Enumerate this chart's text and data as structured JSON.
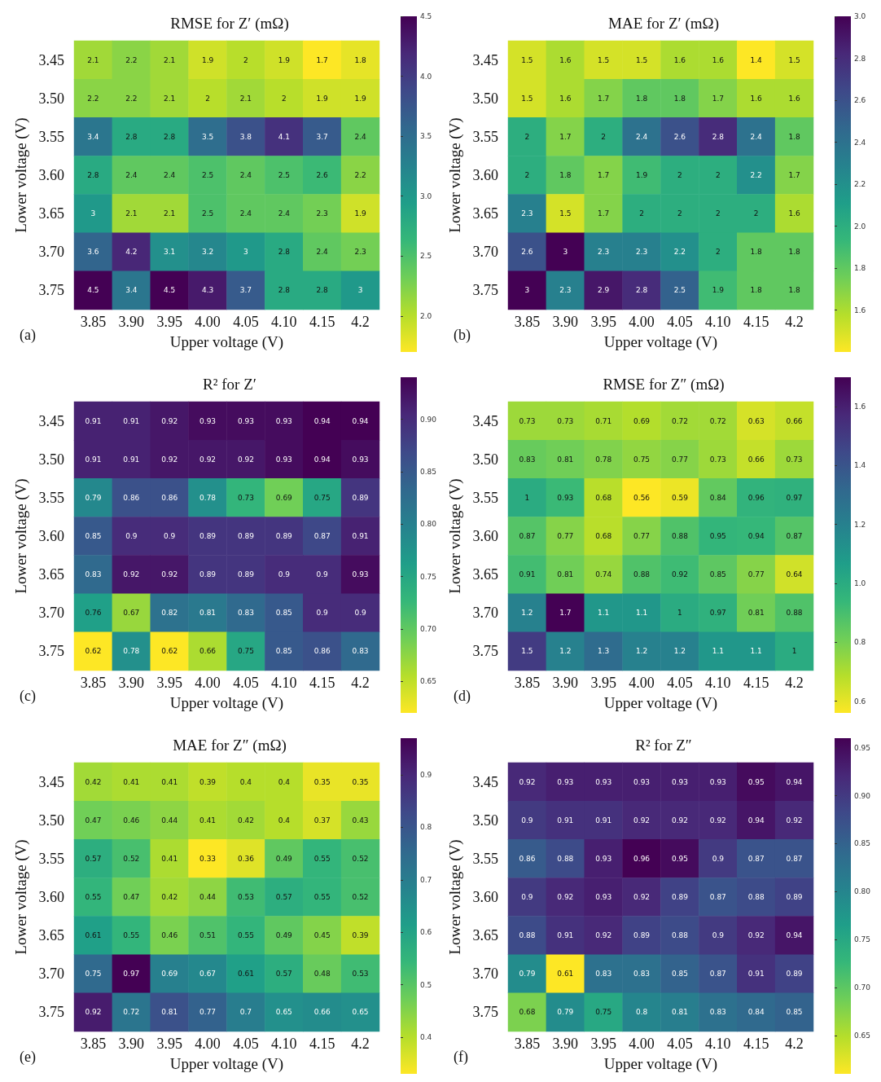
{
  "chart_data": [
    {
      "type": "heatmap",
      "title": "RMSE for Z′ (mΩ)",
      "xlabel": "Upper voltage (V)",
      "ylabel": "Lower voltage (V)",
      "annotations": [
        "(a)"
      ],
      "data_labels": true,
      "categories": [
        "3.85",
        "3.90",
        "3.95",
        "4.00",
        "4.05",
        "4.10",
        "4.15",
        "4.2"
      ],
      "y_categories": [
        "3.45",
        "3.50",
        "3.55",
        "3.60",
        "3.65",
        "3.70",
        "3.75"
      ],
      "cells": [
        [
          2.1,
          2.2,
          2.1,
          1.9,
          2,
          1.9,
          1.7,
          1.8
        ],
        [
          2.2,
          2.2,
          2.1,
          2,
          2.1,
          2,
          1.9,
          1.9
        ],
        [
          3.4,
          2.8,
          2.8,
          3.5,
          3.8,
          4.1,
          3.7,
          2.4
        ],
        [
          2.8,
          2.4,
          2.4,
          2.5,
          2.4,
          2.5,
          2.6,
          2.2
        ],
        [
          3,
          2.1,
          2.1,
          2.5,
          2.4,
          2.4,
          2.3,
          1.9
        ],
        [
          3.6,
          4.2,
          3.1,
          3.2,
          3,
          2.8,
          2.4,
          2.3
        ],
        [
          4.5,
          3.4,
          4.5,
          4.3,
          3.7,
          2.8,
          2.8,
          3
        ]
      ],
      "clim": [
        1.7,
        4.5
      ],
      "cticks": [
        {
          "value": 2,
          "label": "2.0"
        },
        {
          "value": 2.5,
          "label": "2.5"
        },
        {
          "value": 3,
          "label": "3.0"
        },
        {
          "value": 3.5,
          "label": "3.5"
        },
        {
          "value": 4,
          "label": "4.0"
        },
        {
          "value": 4.5,
          "label": "4.5"
        }
      ]
    },
    {
      "type": "heatmap",
      "title": "MAE for Z′ (mΩ)",
      "xlabel": "Upper voltage (V)",
      "ylabel": "Lower voltage (V)",
      "annotations": [
        "(b)"
      ],
      "data_labels": true,
      "categories": [
        "3.85",
        "3.90",
        "3.95",
        "4.00",
        "4.05",
        "4.10",
        "4.15",
        "4.2"
      ],
      "y_categories": [
        "3.45",
        "3.50",
        "3.55",
        "3.60",
        "3.65",
        "3.70",
        "3.75"
      ],
      "cells": [
        [
          1.5,
          1.6,
          1.5,
          1.5,
          1.6,
          1.6,
          1.4,
          1.5
        ],
        [
          1.5,
          1.6,
          1.7,
          1.8,
          1.8,
          1.7,
          1.6,
          1.6
        ],
        [
          2,
          1.7,
          2,
          2.4,
          2.6,
          2.8,
          2.4,
          1.8
        ],
        [
          2,
          1.8,
          1.7,
          1.9,
          2,
          2,
          2.2,
          1.7
        ],
        [
          2.3,
          1.5,
          1.7,
          2,
          2,
          2,
          2,
          1.6
        ],
        [
          2.6,
          3,
          2.3,
          2.3,
          2.2,
          2,
          1.8,
          1.8
        ],
        [
          3,
          2.3,
          2.9,
          2.8,
          2.5,
          1.9,
          1.8,
          1.8
        ]
      ],
      "clim": [
        1.4,
        3
      ],
      "cticks": [
        {
          "value": 1.6,
          "label": "1.6"
        },
        {
          "value": 1.8,
          "label": "1.8"
        },
        {
          "value": 2,
          "label": "2.0"
        },
        {
          "value": 2.2,
          "label": "2.2"
        },
        {
          "value": 2.4,
          "label": "2.4"
        },
        {
          "value": 2.6,
          "label": "2.6"
        },
        {
          "value": 2.8,
          "label": "2.8"
        },
        {
          "value": 3,
          "label": "3.0"
        }
      ]
    },
    {
      "type": "heatmap",
      "title": "R² for Z′",
      "xlabel": "Upper voltage (V)",
      "ylabel": "Lower voltage (V)",
      "annotations": [
        "(c)"
      ],
      "data_labels": true,
      "categories": [
        "3.85",
        "3.90",
        "3.95",
        "4.00",
        "4.05",
        "4.10",
        "4.15",
        "4.2"
      ],
      "y_categories": [
        "3.45",
        "3.50",
        "3.55",
        "3.60",
        "3.65",
        "3.70",
        "3.75"
      ],
      "cells": [
        [
          0.91,
          0.91,
          0.92,
          0.93,
          0.93,
          0.93,
          0.94,
          0.94
        ],
        [
          0.91,
          0.91,
          0.92,
          0.92,
          0.92,
          0.93,
          0.94,
          0.93
        ],
        [
          0.79,
          0.86,
          0.86,
          0.78,
          0.73,
          0.69,
          0.75,
          0.89
        ],
        [
          0.85,
          0.9,
          0.9,
          0.89,
          0.89,
          0.89,
          0.87,
          0.91
        ],
        [
          0.83,
          0.92,
          0.92,
          0.89,
          0.89,
          0.9,
          0.9,
          0.93
        ],
        [
          0.76,
          0.67,
          0.82,
          0.81,
          0.83,
          0.85,
          0.9,
          0.9
        ],
        [
          0.62,
          0.78,
          0.62,
          0.66,
          0.75,
          0.85,
          0.86,
          0.83
        ]
      ],
      "clim": [
        0.62,
        0.94
      ],
      "cticks": [
        {
          "value": 0.65,
          "label": "0.65"
        },
        {
          "value": 0.7,
          "label": "0.70"
        },
        {
          "value": 0.75,
          "label": "0.75"
        },
        {
          "value": 0.8,
          "label": "0.80"
        },
        {
          "value": 0.85,
          "label": "0.85"
        },
        {
          "value": 0.9,
          "label": "0.90"
        }
      ]
    },
    {
      "type": "heatmap",
      "title": "RMSE for Z″ (mΩ)",
      "xlabel": "Upper voltage (V)",
      "ylabel": "Lower voltage (V)",
      "annotations": [
        "(d)"
      ],
      "data_labels": true,
      "categories": [
        "3.85",
        "3.90",
        "3.95",
        "4.00",
        "4.05",
        "4.10",
        "4.15",
        "4.2"
      ],
      "y_categories": [
        "3.45",
        "3.50",
        "3.55",
        "3.60",
        "3.65",
        "3.70",
        "3.75"
      ],
      "cells": [
        [
          0.73,
          0.73,
          0.71,
          0.69,
          0.72,
          0.72,
          0.63,
          0.66
        ],
        [
          0.83,
          0.81,
          0.78,
          0.75,
          0.77,
          0.73,
          0.66,
          0.73
        ],
        [
          1,
          0.93,
          0.68,
          0.56,
          0.59,
          0.84,
          0.96,
          0.97
        ],
        [
          0.87,
          0.77,
          0.68,
          0.77,
          0.88,
          0.95,
          0.94,
          0.87
        ],
        [
          0.91,
          0.81,
          0.74,
          0.88,
          0.92,
          0.85,
          0.77,
          0.64
        ],
        [
          1.2,
          1.7,
          1.1,
          1.1,
          1,
          0.97,
          0.81,
          0.88
        ],
        [
          1.5,
          1.2,
          1.3,
          1.2,
          1.2,
          1.1,
          1.1,
          1
        ]
      ],
      "clim": [
        0.56,
        1.7
      ],
      "cticks": [
        {
          "value": 0.6,
          "label": "0.6"
        },
        {
          "value": 0.8,
          "label": "0.8"
        },
        {
          "value": 1,
          "label": "1.0"
        },
        {
          "value": 1.2,
          "label": "1.2"
        },
        {
          "value": 1.4,
          "label": "1.4"
        },
        {
          "value": 1.6,
          "label": "1.6"
        }
      ]
    },
    {
      "type": "heatmap",
      "title": "MAE for Z″ (mΩ)",
      "xlabel": "Upper voltage (V)",
      "ylabel": "Lower voltage (V)",
      "annotations": [
        "(e)"
      ],
      "data_labels": true,
      "categories": [
        "3.85",
        "3.90",
        "3.95",
        "4.00",
        "4.05",
        "4.10",
        "4.15",
        "4.2"
      ],
      "y_categories": [
        "3.45",
        "3.50",
        "3.55",
        "3.60",
        "3.65",
        "3.70",
        "3.75"
      ],
      "cells": [
        [
          0.42,
          0.41,
          0.41,
          0.39,
          0.4,
          0.4,
          0.35,
          0.35
        ],
        [
          0.47,
          0.46,
          0.44,
          0.41,
          0.42,
          0.4,
          0.37,
          0.43
        ],
        [
          0.57,
          0.52,
          0.41,
          0.33,
          0.36,
          0.49,
          0.55,
          0.52
        ],
        [
          0.55,
          0.47,
          0.42,
          0.44,
          0.53,
          0.57,
          0.55,
          0.52
        ],
        [
          0.61,
          0.55,
          0.46,
          0.51,
          0.55,
          0.49,
          0.45,
          0.39
        ],
        [
          0.75,
          0.97,
          0.69,
          0.67,
          0.61,
          0.57,
          0.48,
          0.53
        ],
        [
          0.92,
          0.72,
          0.81,
          0.77,
          0.7,
          0.65,
          0.66,
          0.65
        ]
      ],
      "clim": [
        0.33,
        0.97
      ],
      "cticks": [
        0.4,
        0.5,
        0.6,
        0.7,
        0.8,
        0.9
      ]
    },
    {
      "type": "heatmap",
      "title": "R² for Z″",
      "xlabel": "Upper voltage (V)",
      "ylabel": "Lower voltage (V)",
      "annotations": [
        "(f)"
      ],
      "data_labels": true,
      "categories": [
        "3.85",
        "3.90",
        "3.95",
        "4.00",
        "4.05",
        "4.10",
        "4.15",
        "4.2"
      ],
      "y_categories": [
        "3.45",
        "3.50",
        "3.55",
        "3.60",
        "3.65",
        "3.70",
        "3.75"
      ],
      "cells": [
        [
          0.92,
          0.93,
          0.93,
          0.93,
          0.93,
          0.93,
          0.95,
          0.94
        ],
        [
          0.9,
          0.91,
          0.91,
          0.92,
          0.92,
          0.92,
          0.94,
          0.92
        ],
        [
          0.86,
          0.88,
          0.93,
          0.96,
          0.95,
          0.9,
          0.87,
          0.87
        ],
        [
          0.9,
          0.92,
          0.93,
          0.92,
          0.89,
          0.87,
          0.88,
          0.89
        ],
        [
          0.88,
          0.91,
          0.92,
          0.89,
          0.88,
          0.9,
          0.92,
          0.94
        ],
        [
          0.79,
          0.61,
          0.83,
          0.83,
          0.85,
          0.87,
          0.91,
          0.89
        ],
        [
          0.68,
          0.79,
          0.75,
          0.8,
          0.81,
          0.83,
          0.84,
          0.85
        ]
      ],
      "clim": [
        0.61,
        0.96
      ],
      "cticks": [
        {
          "value": 0.65,
          "label": "0.65"
        },
        {
          "value": 0.7,
          "label": "0.70"
        },
        {
          "value": 0.75,
          "label": "0.75"
        },
        {
          "value": 0.8,
          "label": "0.80"
        },
        {
          "value": 0.85,
          "label": "0.85"
        },
        {
          "value": 0.9,
          "label": "0.90"
        },
        {
          "value": 0.95,
          "label": "0.95"
        }
      ]
    }
  ]
}
